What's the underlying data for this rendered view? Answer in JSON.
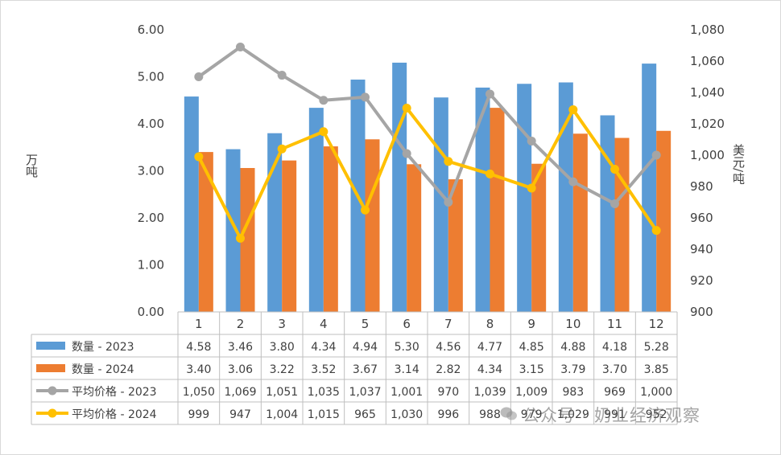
{
  "chart_data": {
    "type": "bar",
    "categories": [
      "1",
      "2",
      "3",
      "4",
      "5",
      "6",
      "7",
      "8",
      "9",
      "10",
      "11",
      "12"
    ],
    "ylabel_left": "万吨",
    "ylabel_right": "美元/吨",
    "ylim_left": [
      0,
      6
    ],
    "ylim_right": [
      900,
      1080
    ],
    "yticks_left": [
      "0.00",
      "1.00",
      "2.00",
      "3.00",
      "4.00",
      "5.00",
      "6.00"
    ],
    "yticks_right": [
      "900",
      "920",
      "940",
      "960",
      "980",
      "1,000",
      "1,020",
      "1,040",
      "1,060",
      "1,080"
    ],
    "grid": false,
    "legend": "data-table-bottom",
    "series": [
      {
        "name": "数量 - 2023",
        "kind": "bar",
        "axis": "left",
        "color": "#5b9bd5",
        "values": [
          4.58,
          3.46,
          3.8,
          4.34,
          4.94,
          5.3,
          4.56,
          4.77,
          4.85,
          4.88,
          4.18,
          5.28
        ],
        "labels": [
          "4.58",
          "3.46",
          "3.80",
          "4.34",
          "4.94",
          "5.30",
          "4.56",
          "4.77",
          "4.85",
          "4.88",
          "4.18",
          "5.28"
        ]
      },
      {
        "name": "数量 - 2024",
        "kind": "bar",
        "axis": "left",
        "color": "#ed7d31",
        "values": [
          3.4,
          3.06,
          3.22,
          3.52,
          3.67,
          3.14,
          2.82,
          4.34,
          3.15,
          3.79,
          3.7,
          3.85
        ],
        "labels": [
          "3.40",
          "3.06",
          "3.22",
          "3.52",
          "3.67",
          "3.14",
          "2.82",
          "4.34",
          "3.15",
          "3.79",
          "3.70",
          "3.85"
        ]
      },
      {
        "name": "平均价格 - 2023",
        "kind": "line",
        "axis": "right",
        "color": "#a5a5a5",
        "values": [
          1050,
          1069,
          1051,
          1035,
          1037,
          1001,
          970,
          1039,
          1009,
          983,
          969,
          1000
        ],
        "labels": [
          "1,050",
          "1,069",
          "1,051",
          "1,035",
          "1,037",
          "1,001",
          "970",
          "1,039",
          "1,009",
          "983",
          "969",
          "1,000"
        ]
      },
      {
        "name": "平均价格 - 2024",
        "kind": "line",
        "axis": "right",
        "color": "#ffc000",
        "values": [
          999,
          947,
          1004,
          1015,
          965,
          1030,
          996,
          988,
          979,
          1029,
          991,
          952
        ],
        "labels": [
          "999",
          "947",
          "1,004",
          "1,015",
          "965",
          "1,030",
          "996",
          "988",
          "979",
          "1,029",
          "991",
          "952"
        ]
      }
    ]
  },
  "watermark": "公众号 · 奶业经济观察",
  "watermark_icon": "wechat-icon"
}
